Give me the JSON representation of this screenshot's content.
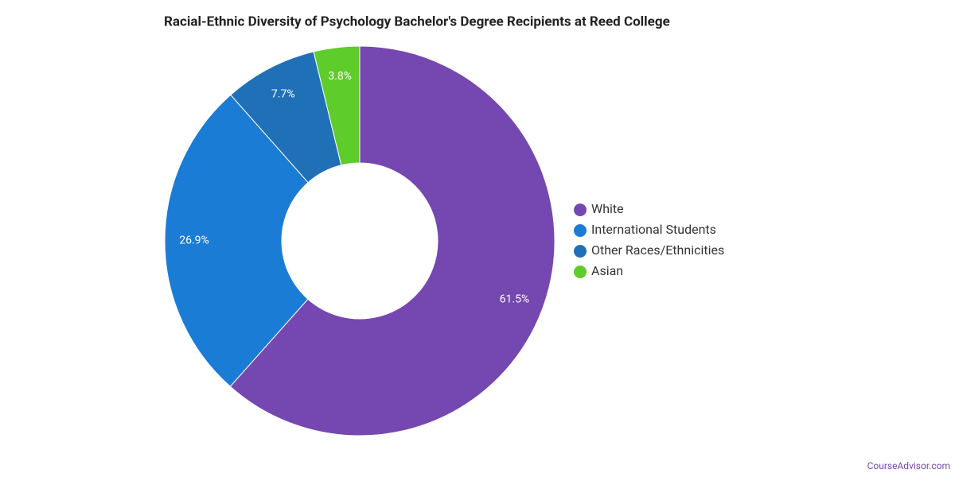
{
  "chart_data": {
    "type": "donut",
    "title": "Racial-Ethnic Diversity of Psychology Bachelor's Degree Recipients at Reed College",
    "categories": [
      "White",
      "International Students",
      "Other Races/Ethnicities",
      "Asian"
    ],
    "values": [
      61.5,
      26.9,
      7.7,
      3.8
    ],
    "value_labels": [
      "61.5%",
      "26.9%",
      "7.7%",
      "3.8%"
    ],
    "colors": [
      "#7448b0",
      "#1b7cd6",
      "#1f70b7",
      "#5ecc2a"
    ],
    "legend": "right"
  },
  "footer": "CourseAdvisor.com"
}
